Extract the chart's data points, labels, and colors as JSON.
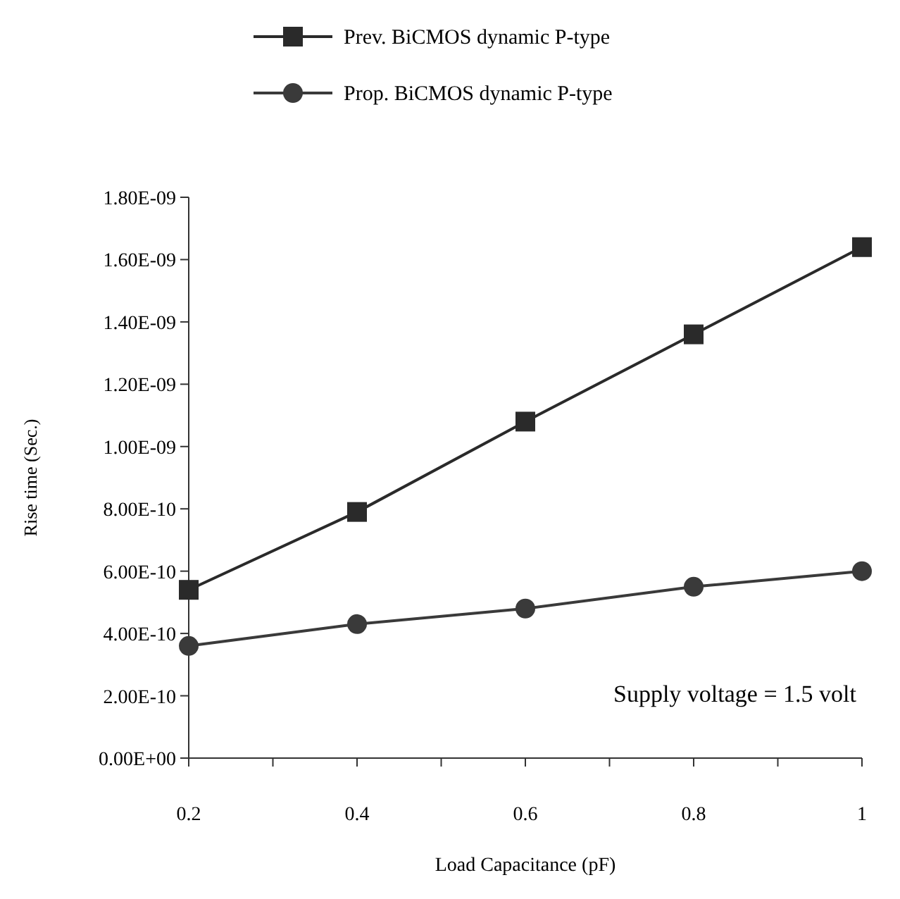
{
  "chart_data": {
    "type": "line",
    "xlabel": "Load Capacitance (pF)",
    "ylabel": "Rise time (Sec.)",
    "x": [
      0.2,
      0.4,
      0.6,
      0.8,
      1
    ],
    "xlim": [
      0.2,
      1
    ],
    "xticks": [
      0.2,
      {
        "value": 0.3,
        "label": null
      },
      0.4,
      {
        "value": 0.5,
        "label": null
      },
      0.6,
      {
        "value": 0.7,
        "label": null
      },
      0.8,
      {
        "value": 0.9,
        "label": null
      },
      1
    ],
    "ylim": [
      0,
      1.8e-09
    ],
    "yticks": [
      {
        "value": 0,
        "label": "0.00E+00"
      },
      {
        "value": 2e-10,
        "label": "2.00E-10"
      },
      {
        "value": 4e-10,
        "label": "4.00E-10"
      },
      {
        "value": 6e-10,
        "label": "6.00E-10"
      },
      {
        "value": 8e-10,
        "label": "8.00E-10"
      },
      {
        "value": 1e-09,
        "label": "1.00E-09"
      },
      {
        "value": 1.2e-09,
        "label": "1.20E-09"
      },
      {
        "value": 1.4e-09,
        "label": "1.40E-09"
      },
      {
        "value": 1.6e-09,
        "label": "1.60E-09"
      },
      {
        "value": 1.8e-09,
        "label": "1.80E-09"
      }
    ],
    "series": [
      {
        "name": "Prev. BiCMOS dynamic P-type",
        "color": "#2a2a2a",
        "marker": "square",
        "values": [
          5.4e-10,
          7.9e-10,
          1.08e-09,
          1.36e-09,
          1.64e-09
        ]
      },
      {
        "name": "Prop. BiCMOS dynamic P-type",
        "color": "#3a3a3a",
        "marker": "circle",
        "values": [
          3.6e-10,
          4.3e-10,
          4.8e-10,
          5.5e-10,
          6e-10
        ]
      }
    ],
    "annotations": [
      "Supply voltage = 1.5 volt"
    ],
    "legend": "top",
    "grid": false,
    "line_style": "solid"
  }
}
